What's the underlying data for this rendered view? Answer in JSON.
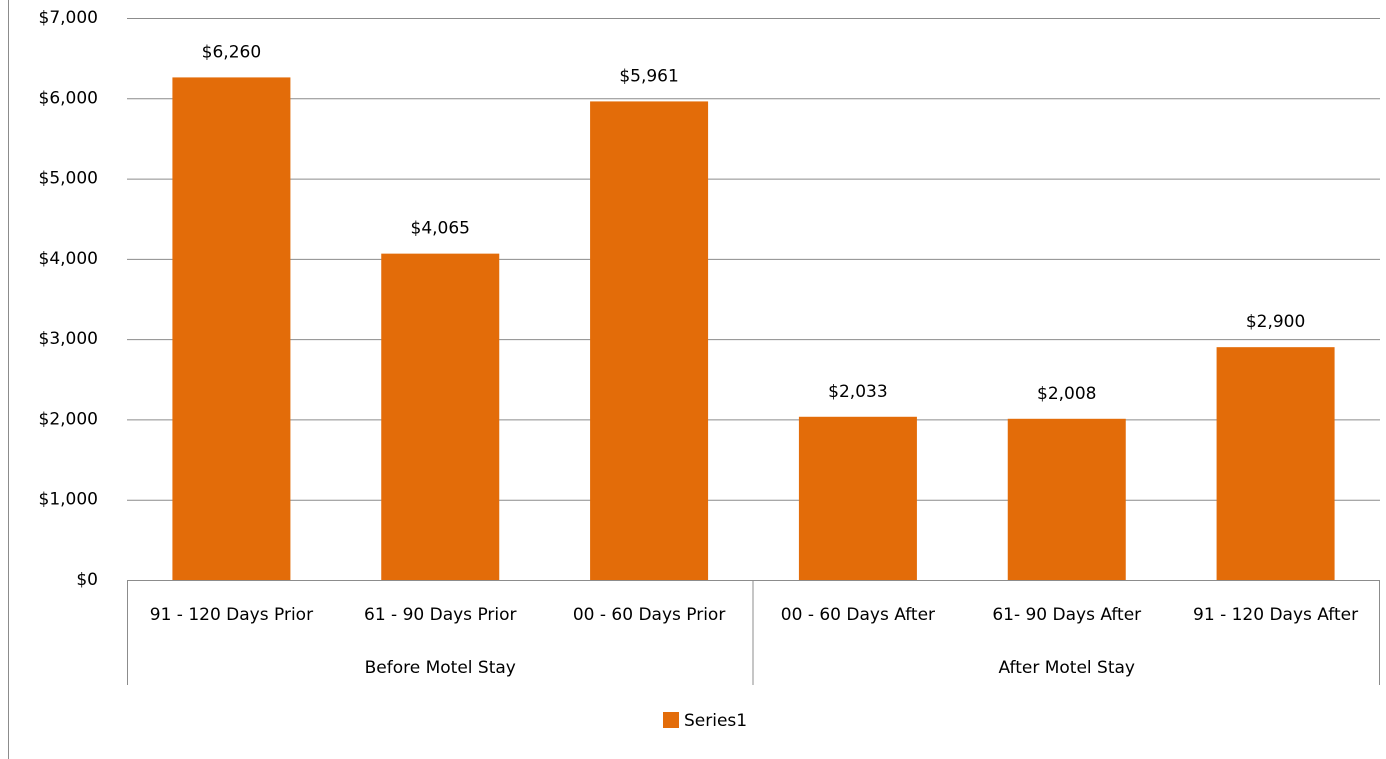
{
  "chart_data": {
    "type": "bar",
    "categories": [
      "91 - 120 Days Prior",
      "61 - 90 Days Prior",
      "00 - 60 Days Prior",
      "00 - 60 Days After",
      "61- 90 Days After",
      "91 - 120 Days After"
    ],
    "groups": [
      {
        "label": "Before Motel Stay",
        "size": 3
      },
      {
        "label": "After Motel Stay",
        "size": 3
      }
    ],
    "series": [
      {
        "name": "Series1",
        "color": "#e36c09",
        "values": [
          6260,
          4065,
          5961,
          2033,
          2008,
          2900
        ],
        "value_labels": [
          "$6,260",
          "$4,065",
          "$5,961",
          "$2,033",
          "$2,008",
          "$2,900"
        ]
      }
    ],
    "ylim": [
      0,
      7000
    ],
    "yticks": [
      {
        "value": 0,
        "label": "$0"
      },
      {
        "value": 1000,
        "label": "$1,000"
      },
      {
        "value": 2000,
        "label": "$2,000"
      },
      {
        "value": 3000,
        "label": "$3,000"
      },
      {
        "value": 4000,
        "label": "$4,000"
      },
      {
        "value": 5000,
        "label": "$5,000"
      },
      {
        "value": 6000,
        "label": "$6,000"
      },
      {
        "value": 7000,
        "label": "$7,000"
      }
    ],
    "grid": true,
    "legend": "bottom"
  }
}
